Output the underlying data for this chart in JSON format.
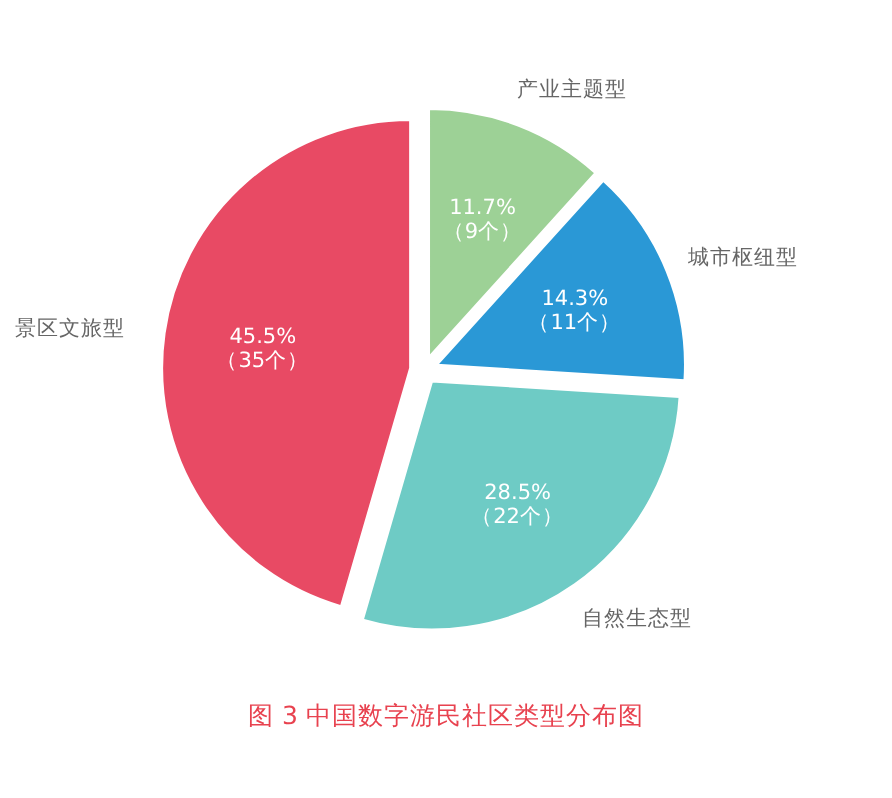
{
  "chart_data": {
    "type": "pie",
    "title": "图 3  中国数字游民社区类型分布图",
    "categories": [
      "产业主题型",
      "城市枢纽型",
      "自然生态型",
      "景区文旅型"
    ],
    "values": [
      11.7,
      14.3,
      28.5,
      45.5
    ],
    "colors": [
      "#9dd196",
      "#2a98d6",
      "#6ecbc5",
      "#e84a64"
    ],
    "value_labels": [
      "11.7%\n（9个）",
      "14.3%\n（11个）",
      "28.5%\n（22个）",
      "45.5%\n（35个）"
    ]
  }
}
